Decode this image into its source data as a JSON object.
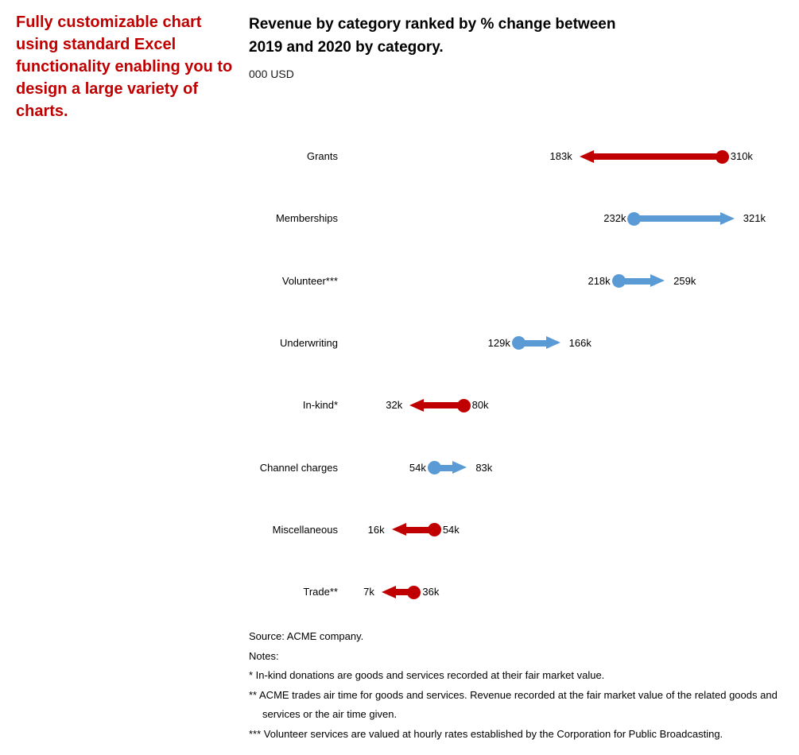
{
  "sidebar_note": {
    "text": "Fully customizable chart using standard Excel functionality enabling you to design a large variety of charts."
  },
  "header": {
    "title_line1": "Revenue by category ranked by % change between",
    "title_line2": "2019 and 2020 by category.",
    "subtitle": "000 USD"
  },
  "chart_data": {
    "type": "arrow",
    "title": "Revenue by category ranked by % change between 2019 and 2020 by category.",
    "unit_label": "000 USD",
    "categories": [
      "Grants",
      "Memberships",
      "Volunteer***",
      "Underwriting",
      "In-kind*",
      "Channel charges",
      "Miscellaneous",
      "Trade**"
    ],
    "series": [
      {
        "name": "2019",
        "role": "start",
        "values": [
          310,
          232,
          218,
          129,
          80,
          54,
          54,
          36
        ],
        "labels": [
          "310k",
          "232k",
          "218k",
          "129k",
          "80k",
          "54k",
          "54k",
          "36k"
        ]
      },
      {
        "name": "2020",
        "role": "end",
        "values": [
          183,
          321,
          259,
          166,
          32,
          83,
          16,
          7
        ],
        "labels": [
          "183k",
          "321k",
          "259k",
          "166k",
          "32k",
          "83k",
          "16k",
          "7k"
        ]
      }
    ],
    "colors": {
      "increase": "#5B9BD5",
      "decrease": "#C00000"
    },
    "value_axis": {
      "min": 0,
      "max": 321,
      "unit": "000 USD",
      "visible": false
    },
    "legend": "none",
    "grid": "off"
  },
  "footer": {
    "source": "Source: ACME company.",
    "notes_label": "Notes:",
    "notes": [
      "* In-kind donations are goods and services recorded at their fair market value.",
      "** ACME trades air time for goods and services. Revenue recorded at the fair market value of the related goods and services or the air time given.",
      "*** Volunteer services are valued at hourly rates established by the Corporation for Public Broadcasting."
    ]
  }
}
